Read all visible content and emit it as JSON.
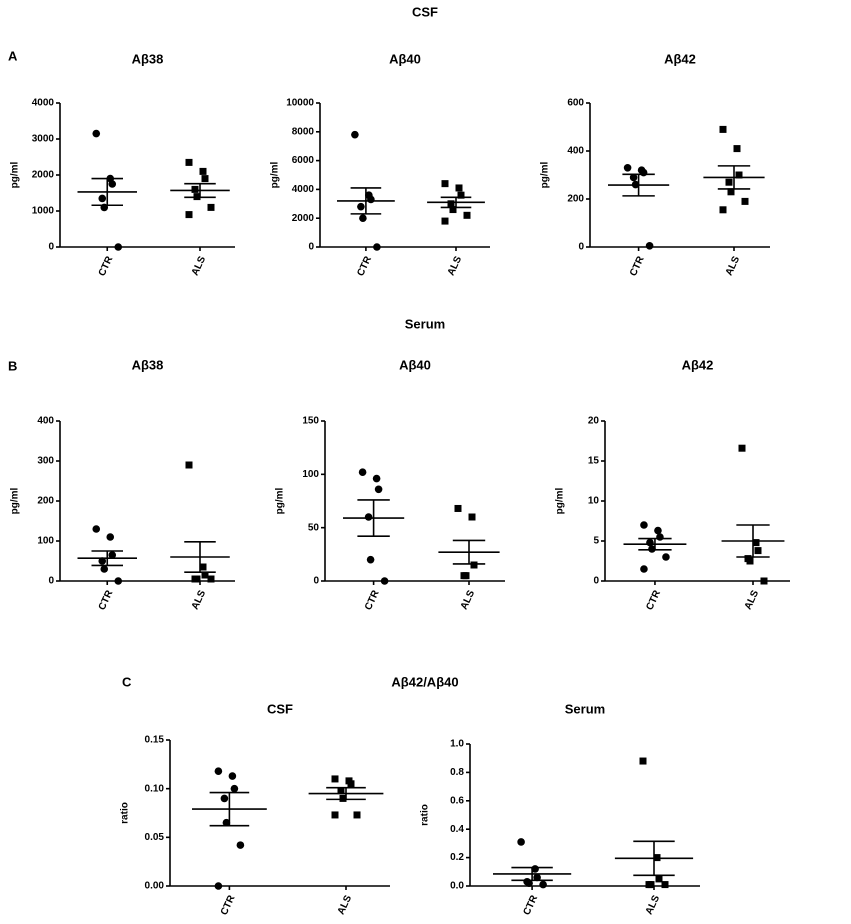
{
  "labels": {
    "section_a": "CSF",
    "panel_a": "A",
    "section_b": "Serum",
    "panel_b": "B",
    "panel_c": "C",
    "section_c": "Aβ42/Aβ40"
  },
  "chart_data": [
    {
      "type": "dotplot",
      "title": "Aβ38",
      "y_label": "pg/ml",
      "categories": [
        "CTR",
        "ALS"
      ],
      "markers": [
        "circle",
        "square"
      ],
      "color": "#000000",
      "values": [
        [
          3150,
          1900,
          1750,
          1350,
          1100,
          0
        ],
        [
          2350,
          2100,
          1900,
          1600,
          1400,
          1100,
          900
        ]
      ],
      "means": [
        1530,
        1570
      ],
      "sems": [
        370,
        190
      ],
      "ylim": [
        0,
        4000
      ],
      "yticks": [
        0,
        1000,
        2000,
        3000,
        4000
      ]
    },
    {
      "type": "dotplot",
      "title": "Aβ40",
      "y_label": "pg/ml",
      "categories": [
        "CTR",
        "ALS"
      ],
      "markers": [
        "circle",
        "square"
      ],
      "color": "#000000",
      "values": [
        [
          7800,
          3600,
          3300,
          2800,
          2000,
          0
        ],
        [
          4400,
          4100,
          3600,
          3000,
          2600,
          2200,
          1800
        ]
      ],
      "means": [
        3200,
        3100
      ],
      "sems": [
        900,
        350
      ],
      "ylim": [
        0,
        10000
      ],
      "yticks": [
        0,
        2000,
        4000,
        6000,
        8000,
        10000
      ]
    },
    {
      "type": "dotplot",
      "title": "Aβ42",
      "y_label": "pg/ml",
      "categories": [
        "CTR",
        "ALS"
      ],
      "markers": [
        "circle",
        "square"
      ],
      "color": "#000000",
      "values": [
        [
          330,
          320,
          310,
          290,
          260,
          5
        ],
        [
          490,
          410,
          300,
          270,
          230,
          190,
          155
        ]
      ],
      "means": [
        258,
        290
      ],
      "sems": [
        45,
        48
      ],
      "ylim": [
        0,
        600
      ],
      "yticks": [
        0,
        200,
        400,
        600
      ]
    },
    {
      "type": "dotplot",
      "title": "Aβ38",
      "y_label": "pg/ml",
      "categories": [
        "CTR",
        "ALS"
      ],
      "markers": [
        "circle",
        "square"
      ],
      "color": "#000000",
      "values": [
        [
          130,
          110,
          65,
          50,
          30,
          0
        ],
        [
          290,
          35,
          15,
          5,
          5,
          5
        ]
      ],
      "means": [
        57,
        60
      ],
      "sems": [
        18,
        38
      ],
      "ylim": [
        0,
        400
      ],
      "yticks": [
        0,
        100,
        200,
        300,
        400
      ]
    },
    {
      "type": "dotplot",
      "title": "Aβ40",
      "y_label": "pg/ml",
      "categories": [
        "CTR",
        "ALS"
      ],
      "markers": [
        "circle",
        "square"
      ],
      "color": "#000000",
      "values": [
        [
          102,
          96,
          86,
          60,
          20,
          0
        ],
        [
          68,
          60,
          15,
          5,
          5
        ]
      ],
      "means": [
        59,
        27
      ],
      "sems": [
        17,
        11
      ],
      "ylim": [
        0,
        150
      ],
      "yticks": [
        0,
        50,
        100,
        150
      ]
    },
    {
      "type": "dotplot",
      "title": "Aβ42",
      "y_label": "pg/ml",
      "categories": [
        "CTR",
        "ALS"
      ],
      "markers": [
        "circle",
        "square"
      ],
      "color": "#000000",
      "values": [
        [
          7,
          6.3,
          5.5,
          4.8,
          4,
          3,
          1.5
        ],
        [
          16.6,
          4.8,
          3.8,
          2.8,
          2.5,
          0
        ]
      ],
      "means": [
        4.6,
        5
      ],
      "sems": [
        0.7,
        2
      ],
      "ylim": [
        0,
        20
      ],
      "yticks": [
        0,
        5,
        10,
        15,
        20
      ]
    },
    {
      "type": "dotplot",
      "title": "CSF",
      "y_label": "ratio",
      "categories": [
        "CTR",
        "ALS"
      ],
      "markers": [
        "circle",
        "square"
      ],
      "color": "#000000",
      "values": [
        [
          0.118,
          0.113,
          0.1,
          0.09,
          0.065,
          0.042,
          0
        ],
        [
          0.11,
          0.108,
          0.105,
          0.098,
          0.09,
          0.073,
          0.073
        ]
      ],
      "means": [
        0.079,
        0.095
      ],
      "sems": [
        0.017,
        0.006
      ],
      "ylim": [
        0,
        0.15
      ],
      "yticks": [
        {
          "value": 0,
          "label": "0.00"
        },
        {
          "value": 0.05,
          "label": "0.05"
        },
        {
          "value": 0.1,
          "label": "0.10"
        },
        {
          "value": 0.15,
          "label": "0.15"
        }
      ]
    },
    {
      "type": "dotplot",
      "title": "Serum",
      "y_label": "ratio",
      "categories": [
        "CTR",
        "ALS"
      ],
      "markers": [
        "circle",
        "square"
      ],
      "color": "#000000",
      "values": [
        [
          0.31,
          0.12,
          0.06,
          0.03,
          0.02,
          0.01
        ],
        [
          0.88,
          0.2,
          0.05,
          0.01,
          0.01,
          0.01
        ]
      ],
      "means": [
        0.085,
        0.195
      ],
      "sems": [
        0.045,
        0.12
      ],
      "ylim": [
        0,
        1
      ],
      "yticks": [
        {
          "value": 0,
          "label": "0.0"
        },
        {
          "value": 0.2,
          "label": "0.2"
        },
        {
          "value": 0.4,
          "label": "0.4"
        },
        {
          "value": 0.6,
          "label": "0.6"
        },
        {
          "value": 0.8,
          "label": "0.8"
        },
        {
          "value": 1,
          "label": "1.0"
        }
      ]
    }
  ]
}
